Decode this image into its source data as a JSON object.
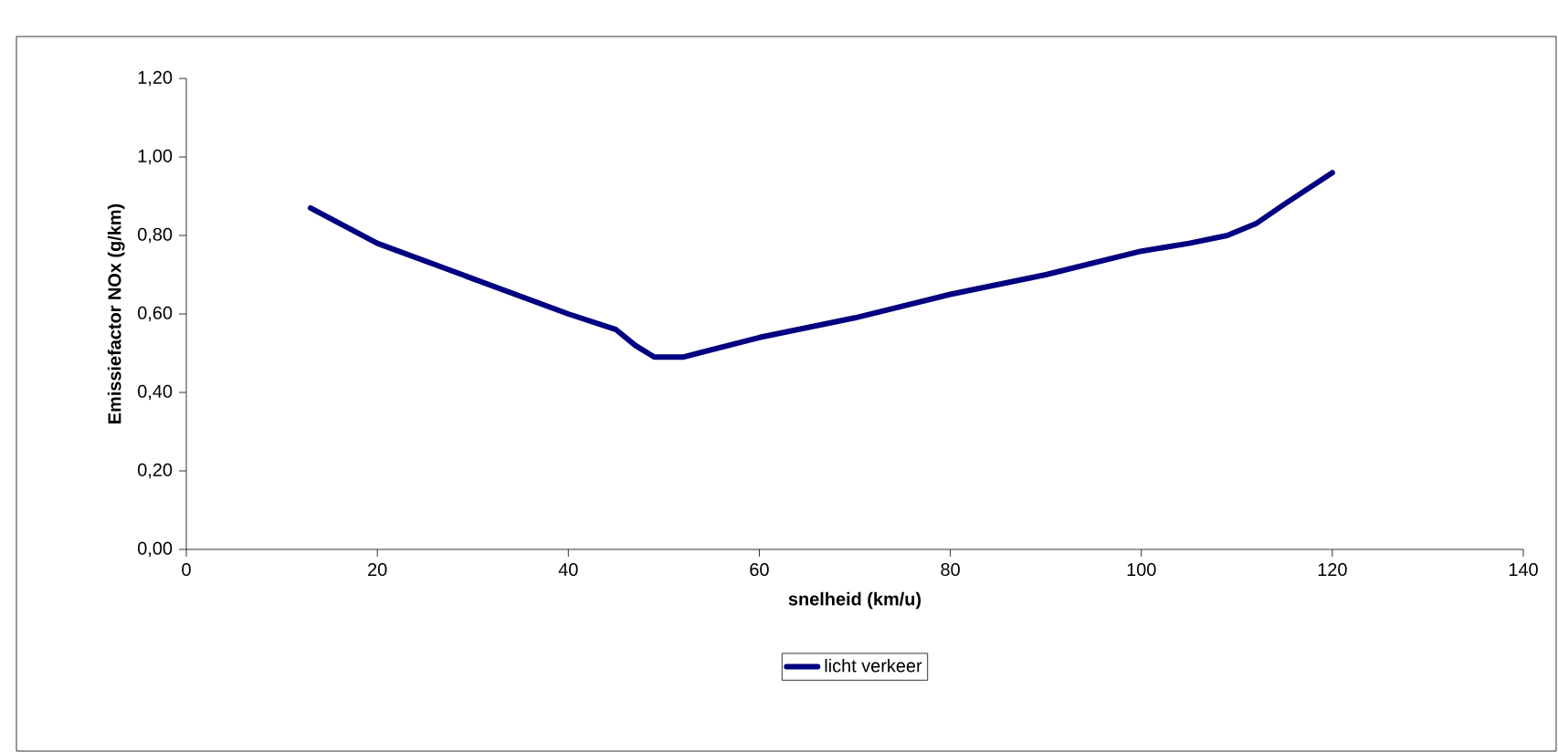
{
  "chart_data": {
    "type": "line",
    "xlabel": "snelheid (km/u)",
    "ylabel": "Emissiefactor NOx (g/km)",
    "x": [
      13,
      20,
      30,
      40,
      45,
      47,
      49,
      52,
      60,
      70,
      80,
      90,
      100,
      105,
      109,
      112,
      115,
      120
    ],
    "series": [
      {
        "name": "licht verkeer",
        "color": "#000080",
        "values": [
          0.87,
          0.78,
          0.69,
          0.6,
          0.56,
          0.52,
          0.49,
          0.49,
          0.54,
          0.59,
          0.65,
          0.7,
          0.76,
          0.78,
          0.8,
          0.83,
          0.88,
          0.96
        ]
      }
    ],
    "xlim": [
      0,
      140
    ],
    "xticks": [
      0,
      20,
      40,
      60,
      80,
      100,
      120,
      140
    ],
    "ylim": [
      0,
      1.2
    ],
    "yticks": [
      {
        "value": 0,
        "label": "0,00"
      },
      {
        "value": 0.2,
        "label": "0,20"
      },
      {
        "value": 0.4,
        "label": "0,40"
      },
      {
        "value": 0.6,
        "label": "0,60"
      },
      {
        "value": 0.8,
        "label": "0,80"
      },
      {
        "value": 1.0,
        "label": "1,00"
      },
      {
        "value": 1.2,
        "label": "1,20"
      }
    ],
    "legend": "bottom",
    "grid": false,
    "marker": "none",
    "line_style": "solid"
  }
}
